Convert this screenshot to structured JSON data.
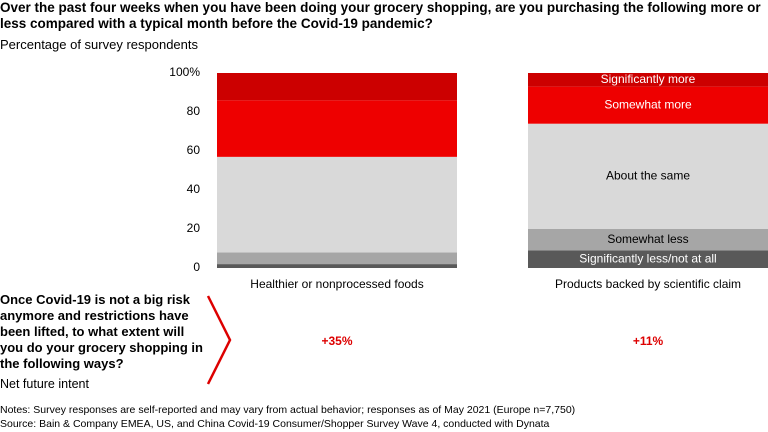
{
  "chart_data": {
    "type": "stacked_bar",
    "title": "Over the past four weeks when you have been doing your grocery shopping, are you purchasing the following more or less compared with a typical month before the Covid-19 pandemic?",
    "y_label": "Percentage of survey respondents",
    "categories": [
      "Healthier or nonprocessed foods",
      "Products backed by scientific claim"
    ],
    "series": [
      {
        "name": "Significantly less/not at all",
        "color": "#595959",
        "values": [
          2,
          9
        ]
      },
      {
        "name": "Somewhat less",
        "color": "#a6a6a6",
        "values": [
          6,
          11
        ]
      },
      {
        "name": "About the same",
        "color": "#d9d9d9",
        "values": [
          49,
          54
        ]
      },
      {
        "name": "Somewhat more",
        "color": "#ee0000",
        "values": [
          29,
          19
        ]
      },
      {
        "name": "Significantly more",
        "color": "#cc0000",
        "values": [
          14,
          7
        ]
      }
    ],
    "ylim": [
      0,
      100
    ],
    "yticks": [
      0,
      20,
      40,
      60,
      80,
      {
        "value": 100,
        "label": "100%"
      }
    ],
    "net_intent": {
      "question": "Once Covid-19 is not a big risk anymore and restrictions have been lifted, to what extent will you do your grocery shopping in the following ways?",
      "label": "Net future intent",
      "value_labels": [
        "+35%",
        "+11%"
      ]
    },
    "notes": "Notes: Survey responses are self-reported and may vary from actual behavior; responses as of May 2021 (Europe n=7,750)",
    "source": "Source: Bain & Company EMEA, US, and China Covid-19 Consumer/Shopper Survey Wave 4, conducted with Dynata"
  }
}
